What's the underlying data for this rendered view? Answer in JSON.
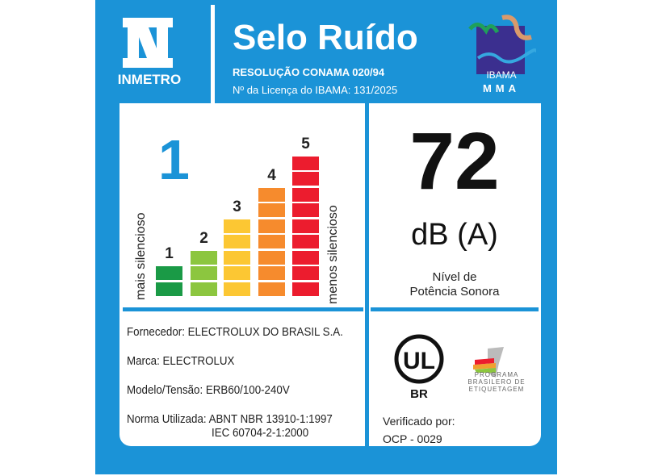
{
  "header": {
    "inmetro_label": "INMETRO",
    "title": "Selo Ruído",
    "resolution": "RESOLUÇÃO CONAMA 020/94",
    "license": "Nº da Licença do IBAMA: 131/2025",
    "ibama_label": "IBAMA",
    "mma_label": "MMA"
  },
  "rating": {
    "level": "1",
    "left_label": "mais silencioso",
    "right_label": "menos silencioso",
    "bars": [
      {
        "label": "1",
        "segments": 2,
        "color": "#1a9a46"
      },
      {
        "label": "2",
        "segments": 3,
        "color": "#8cc63f"
      },
      {
        "label": "3",
        "segments": 5,
        "color": "#fcc733"
      },
      {
        "label": "4",
        "segments": 7,
        "color": "#f68b2d"
      },
      {
        "label": "5",
        "segments": 9,
        "color": "#ec1c2e"
      }
    ]
  },
  "noise": {
    "value": "72",
    "unit": "dB (A)",
    "caption_line1": "Nível de",
    "caption_line2": "Potência Sonora"
  },
  "info": {
    "supplier": "Fornecedor: ELECTROLUX DO BRASIL S.A.",
    "brand": "Marca: ELECTROLUX",
    "model": "Modelo/Tensão: ERB60/100-240V",
    "standard_line1": "Norma Utilizada: ABNT NBR 13910-1:1997",
    "standard_line2": "IEC 60704-2-1:2000"
  },
  "certification": {
    "ul_label": "UL",
    "ul_country": "BR",
    "pbe_text": [
      "PROGRAMA",
      "BRASILERO DE",
      "ETIQUETAGEM"
    ],
    "verified_by": "Verificado por:",
    "ocp": "OCP - 0029"
  },
  "colors": {
    "brand_blue": "#1b93d7"
  }
}
